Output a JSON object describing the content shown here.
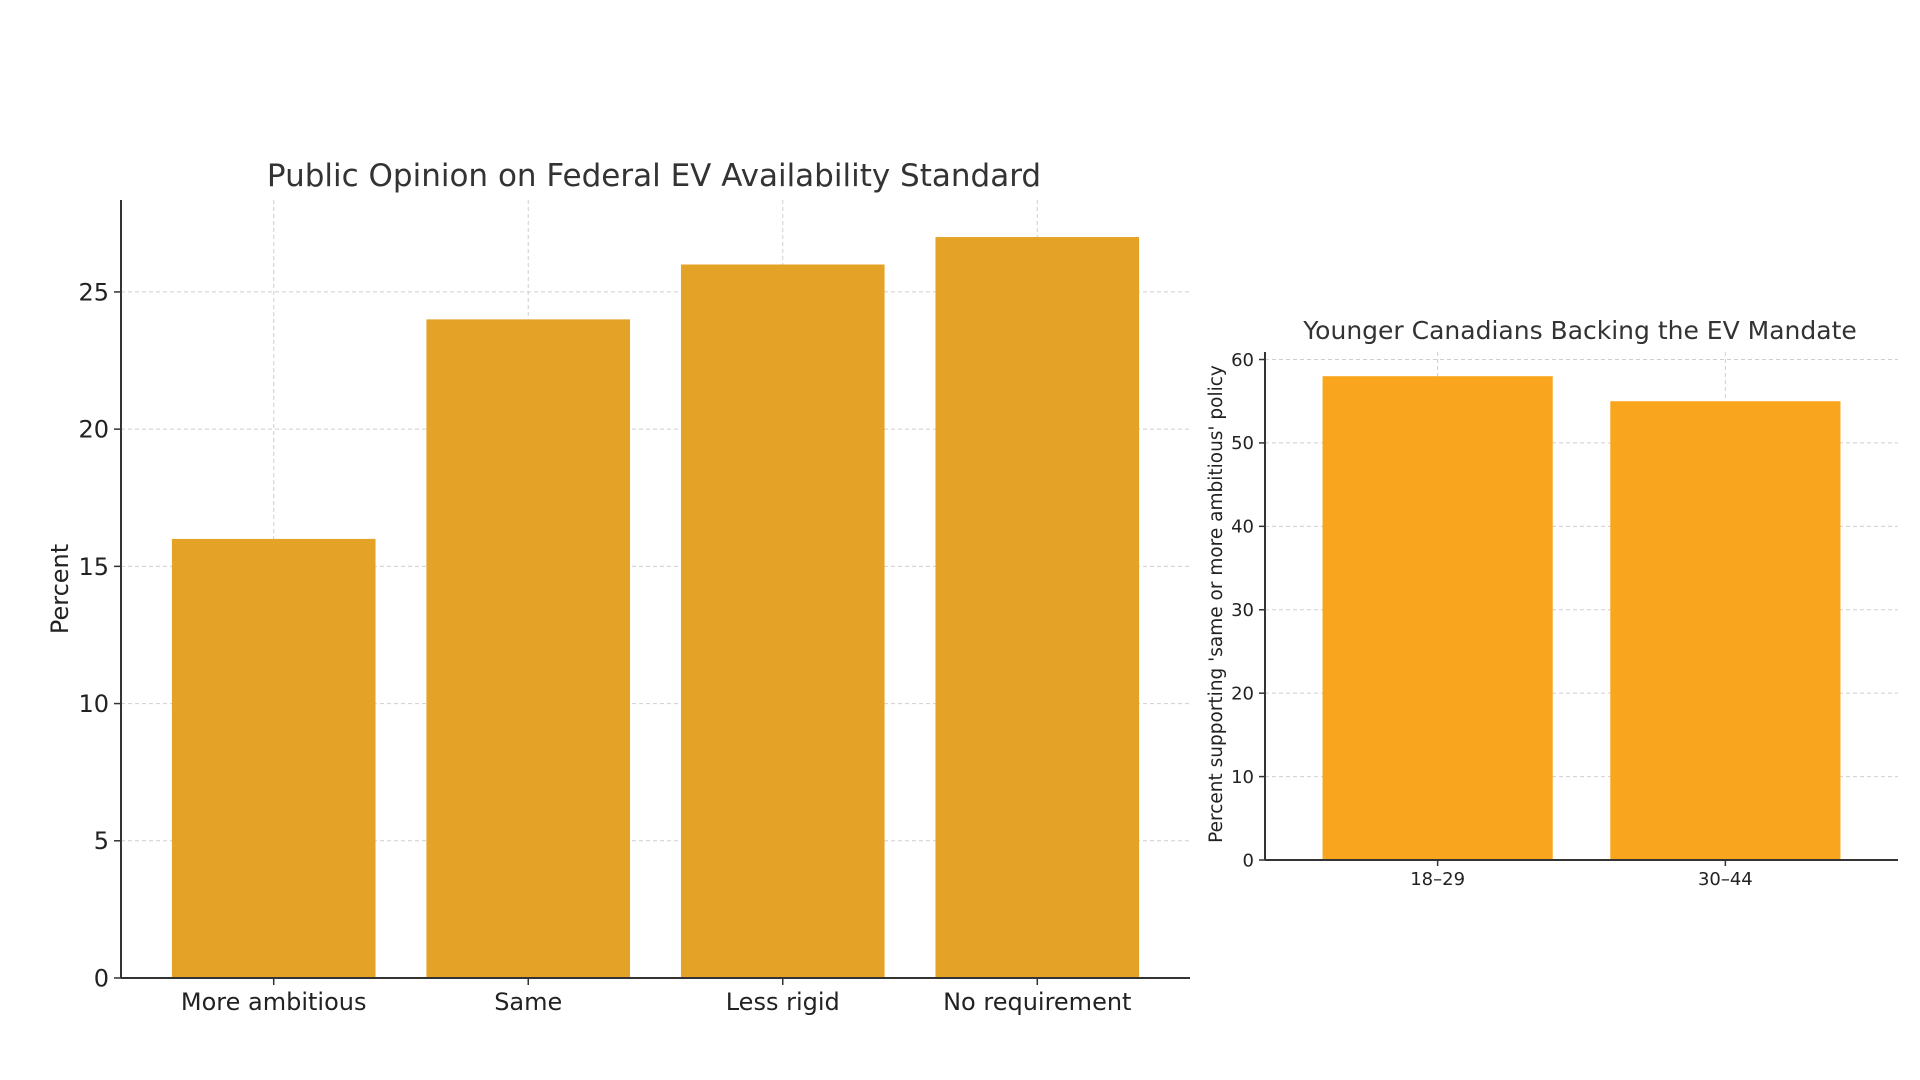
{
  "chart_data": [
    {
      "type": "bar",
      "title": "Public Opinion on Federal EV Availability Standard",
      "xlabel": "",
      "ylabel": "Percent",
      "categories": [
        "More ambitious",
        "Same",
        "Less rigid",
        "No requirement"
      ],
      "values": [
        16,
        24,
        26,
        27
      ],
      "ylim": [
        0,
        28.35
      ],
      "yticks": [
        0,
        5,
        10,
        15,
        20,
        25
      ],
      "bar_color": "#E4A227",
      "grid": true,
      "legend": "none"
    },
    {
      "type": "bar",
      "title": "Younger Canadians Backing the EV Mandate",
      "xlabel": "",
      "ylabel": "Percent supporting 'same or more ambitious' policy",
      "categories": [
        "18–29",
        "30–44"
      ],
      "values": [
        58,
        55
      ],
      "ylim": [
        0,
        60.9
      ],
      "yticks": [
        0,
        10,
        20,
        30,
        40,
        50,
        60
      ],
      "bar_color": "#F9A51E",
      "grid": true,
      "legend": "none"
    }
  ]
}
